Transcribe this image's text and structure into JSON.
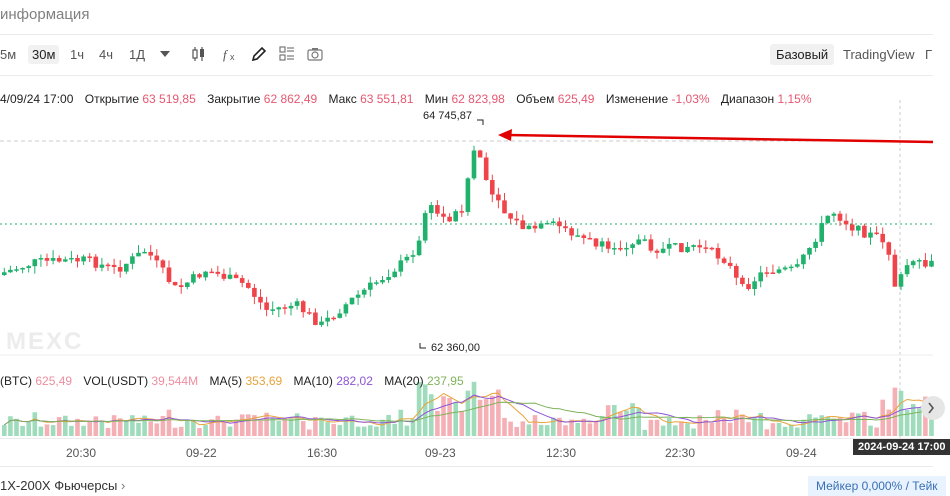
{
  "header": {
    "title": "информация"
  },
  "toolbar": {
    "timeframes": [
      "5м",
      "30м",
      "1ч",
      "4ч",
      "1Д"
    ],
    "selected_timeframe": "30м",
    "views": [
      "Базовый",
      "TradingView",
      "Г"
    ],
    "selected_view": "Базовый"
  },
  "ohlc": {
    "date": "4/09/24 17:00",
    "open_label": "Открытие",
    "open_value": "63 519,85",
    "close_label": "Закрытие",
    "close_value": "62 862,49",
    "high_label": "Макс",
    "high_value": "63 551,81",
    "low_label": "Мин",
    "low_value": "62 823,98",
    "volume_label": "Объем",
    "volume_value": "625,49",
    "change_label": "Изменение",
    "change_value": "-1,03%",
    "range_label": "Диапазон",
    "range_value": "1,15%"
  },
  "chart": {
    "high_marker": "64 745,87",
    "low_marker": "62 360,00",
    "watermark": "MEXC",
    "colors": {
      "up": "#20b26c",
      "down": "#ef454a",
      "annotation": "#e00000"
    }
  },
  "volume_legend": {
    "btc_label": "(BTC)",
    "btc_value": "625,49",
    "vol_label": "VOL(USDT)",
    "vol_value": "39,544M",
    "ma5_label": "MA(5)",
    "ma5_value": "353,69",
    "ma10_label": "MA(10)",
    "ma10_value": "282,02",
    "ma20_label": "MA(20)",
    "ma20_value": "237,95"
  },
  "x_axis": {
    "labels": [
      "20:30",
      "09-22",
      "16:30",
      "09-23",
      "12:30",
      "22:30",
      "09-24"
    ],
    "current_time_tag": "2024-09-24 17:00"
  },
  "footer": {
    "left": "1X-200X Фьючерсы",
    "right": "Мейкер 0,000% / Тейк"
  }
}
